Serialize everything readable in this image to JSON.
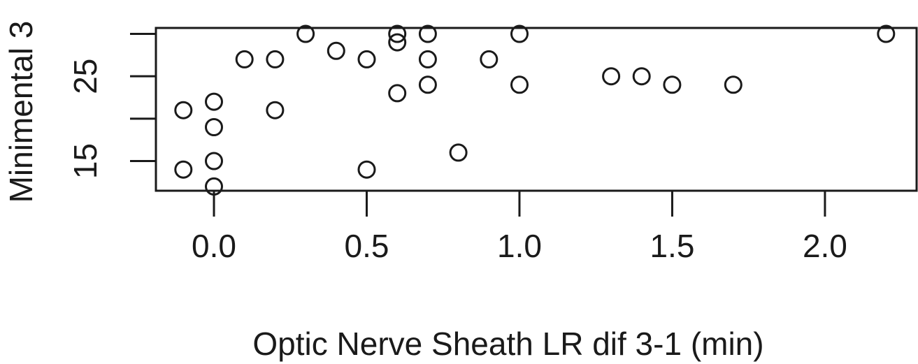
{
  "chart_data": {
    "type": "scatter",
    "xlabel": "Optic Nerve Sheath LR dif 3-1 (min)",
    "ylabel": "Minimental 3",
    "xlim": [
      -0.19,
      2.3
    ],
    "ylim": [
      11.5,
      30.7
    ],
    "x_ticks": [
      {
        "value": 0.0,
        "label": "0.0"
      },
      {
        "value": 0.5,
        "label": "0.5"
      },
      {
        "value": 1.0,
        "label": "1.0"
      },
      {
        "value": 1.5,
        "label": "1.5"
      },
      {
        "value": 2.0,
        "label": "2.0"
      }
    ],
    "y_ticks": [
      {
        "value": 15,
        "label": "15"
      },
      {
        "value": 20,
        "label": ""
      },
      {
        "value": 25,
        "label": "25"
      },
      {
        "value": 30,
        "label": ""
      }
    ],
    "grid": false,
    "marker": "open-circle",
    "color": "#1a1a1a",
    "points": [
      {
        "x": 0.3,
        "y": 30
      },
      {
        "x": 0.6,
        "y": 30
      },
      {
        "x": 0.7,
        "y": 30
      },
      {
        "x": 1.0,
        "y": 30
      },
      {
        "x": 2.2,
        "y": 30
      },
      {
        "x": 0.6,
        "y": 29
      },
      {
        "x": 0.4,
        "y": 28
      },
      {
        "x": 0.1,
        "y": 27
      },
      {
        "x": 0.2,
        "y": 27
      },
      {
        "x": 0.5,
        "y": 27
      },
      {
        "x": 0.7,
        "y": 27
      },
      {
        "x": 0.9,
        "y": 27
      },
      {
        "x": 1.3,
        "y": 25
      },
      {
        "x": 1.4,
        "y": 25
      },
      {
        "x": 0.7,
        "y": 24
      },
      {
        "x": 1.0,
        "y": 24
      },
      {
        "x": 1.5,
        "y": 24
      },
      {
        "x": 1.7,
        "y": 24
      },
      {
        "x": 0.6,
        "y": 23
      },
      {
        "x": 0.0,
        "y": 22
      },
      {
        "x": -0.1,
        "y": 21
      },
      {
        "x": 0.2,
        "y": 21
      },
      {
        "x": 0.0,
        "y": 19
      },
      {
        "x": 0.8,
        "y": 16
      },
      {
        "x": 0.0,
        "y": 15
      },
      {
        "x": -0.1,
        "y": 14
      },
      {
        "x": 0.5,
        "y": 14
      },
      {
        "x": 0.0,
        "y": 12
      }
    ]
  }
}
